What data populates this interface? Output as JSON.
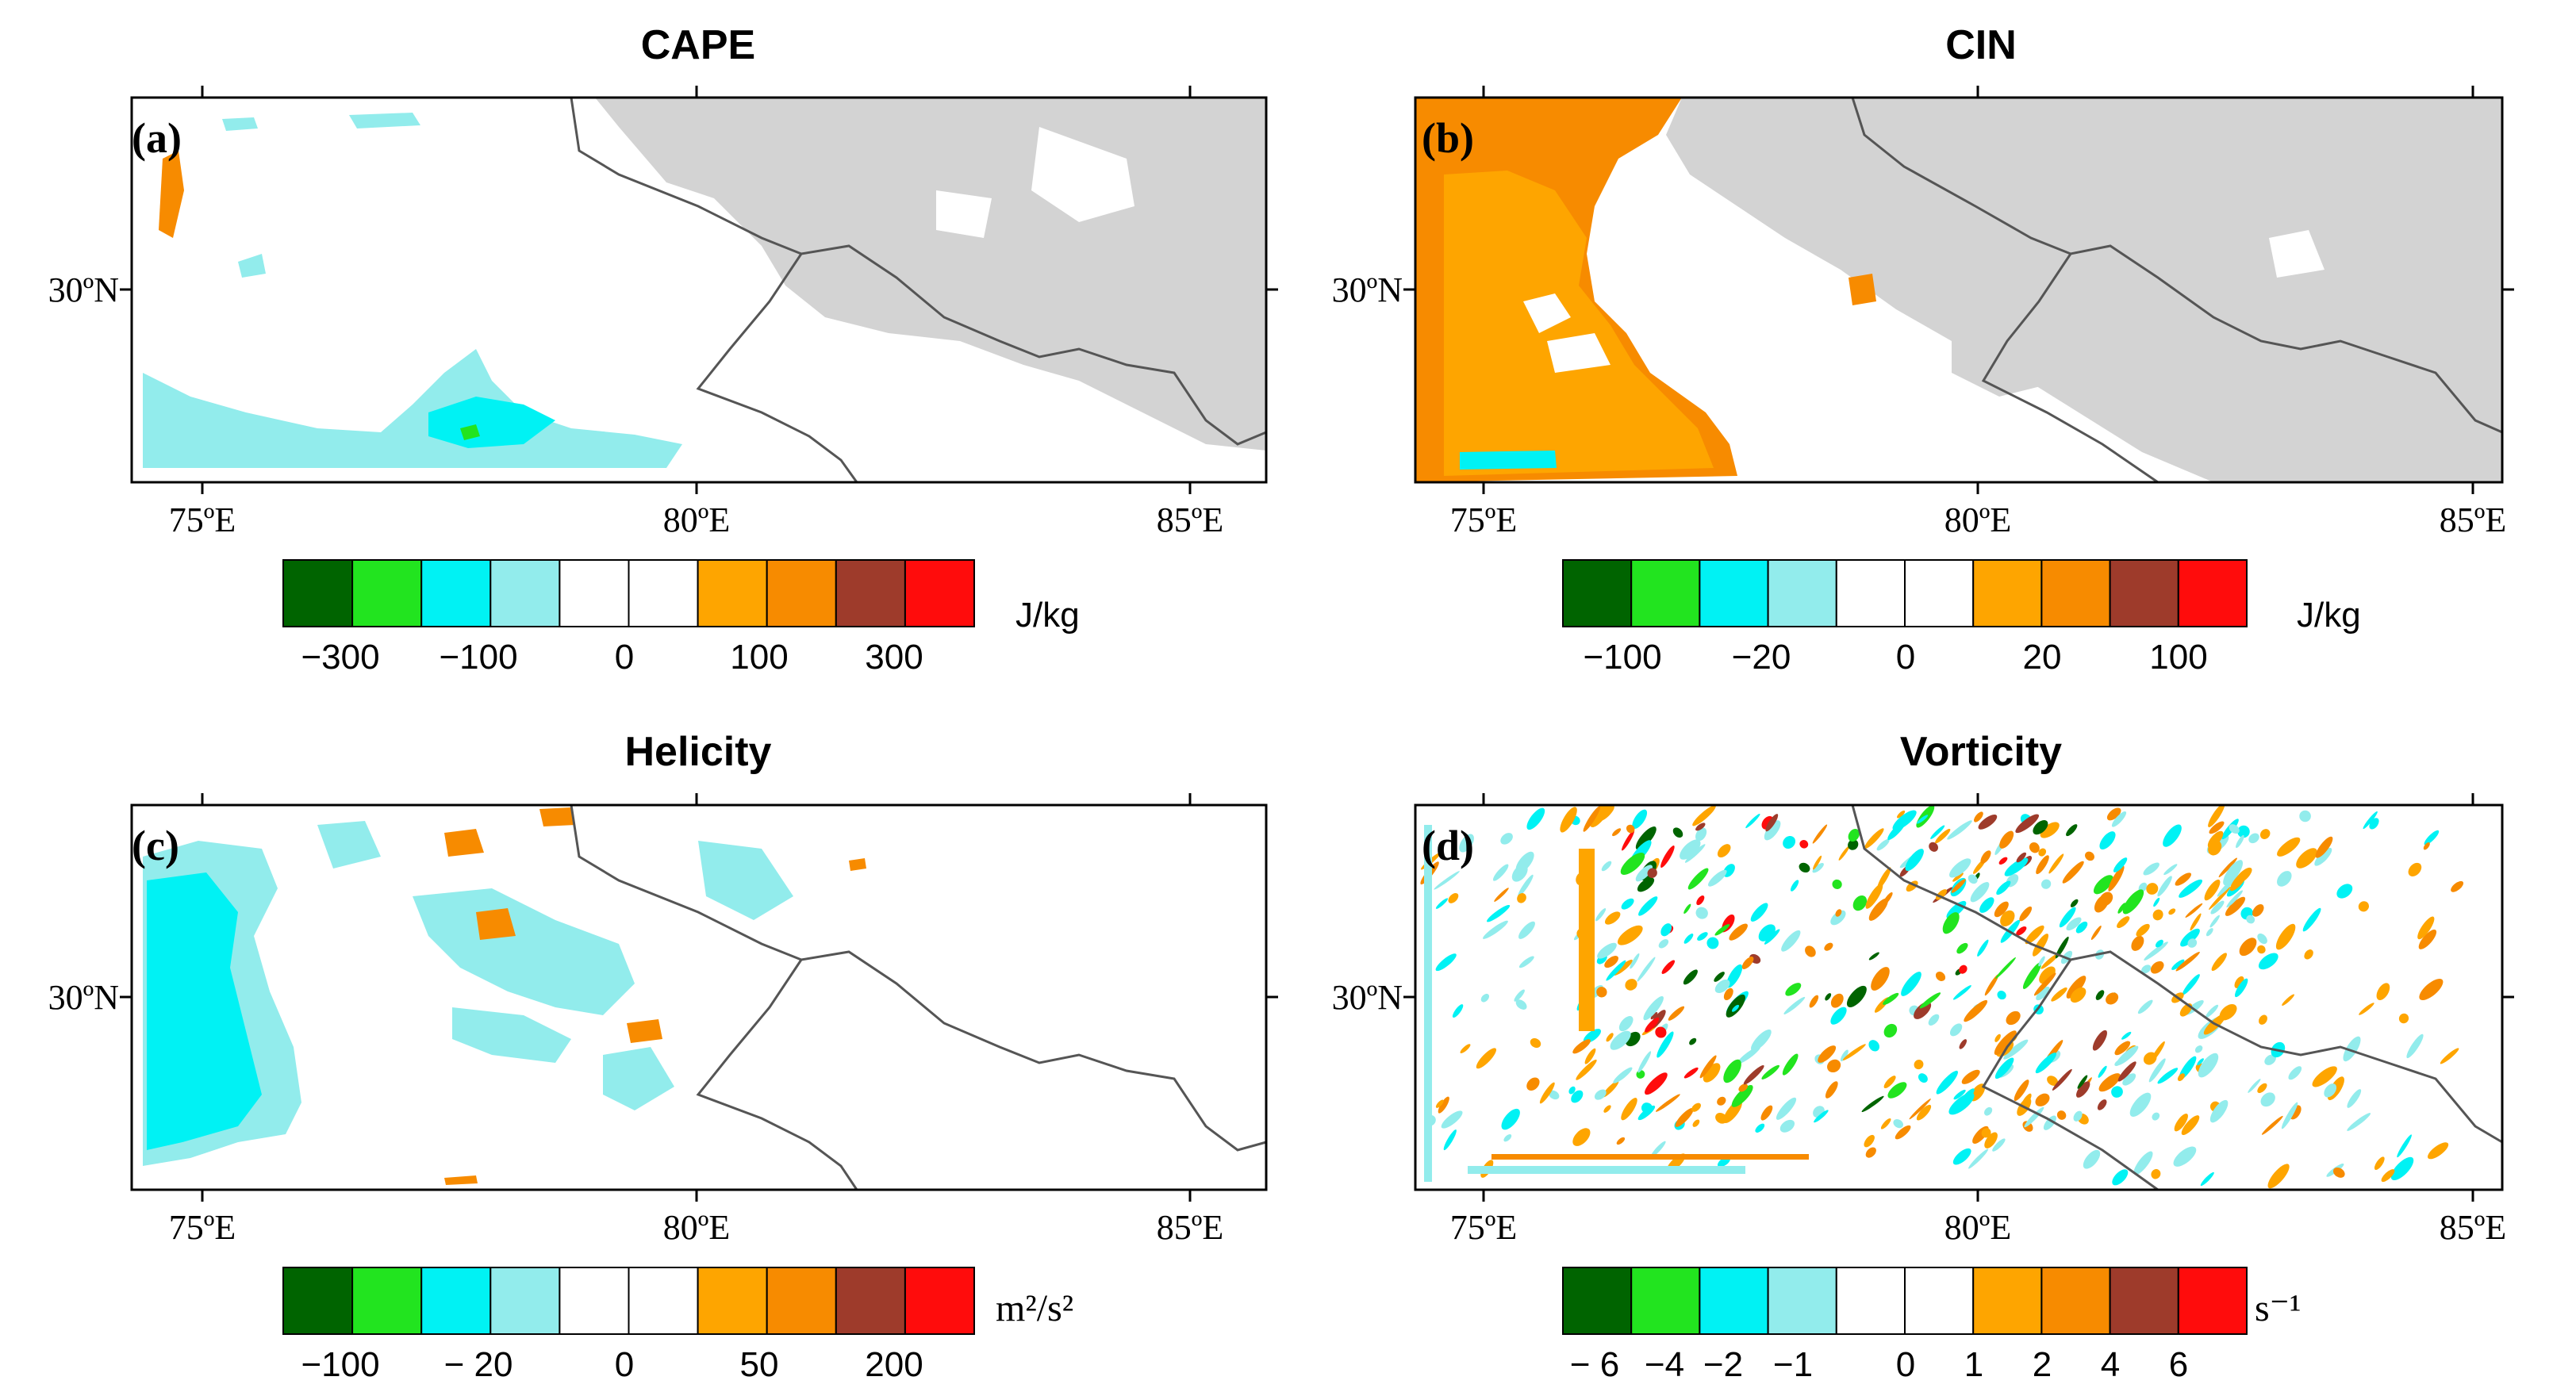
{
  "panels": [
    {
      "key": "cape",
      "title": "CAPE",
      "label": "(a)",
      "lat_label": "30ºN",
      "lon_labels": [
        "75ºE",
        "80ºE",
        "85ºE"
      ],
      "colorbar_ticks": [
        "−300",
        "−100",
        "0",
        "100",
        "300"
      ],
      "unit": "J/kg"
    },
    {
      "key": "cin",
      "title": "CIN",
      "label": "(b)",
      "lat_label": "30ºN",
      "lon_labels": [
        "75ºE",
        "80ºE",
        "85ºE"
      ],
      "colorbar_ticks": [
        "−100",
        "−20",
        "0",
        "20",
        "100"
      ],
      "unit": "J/kg"
    },
    {
      "key": "helicity",
      "title": "Helicity",
      "label": "(c)",
      "lat_label": "30ºN",
      "lon_labels": [
        "75ºE",
        "80ºE",
        "85ºE"
      ],
      "colorbar_ticks": [
        "−100",
        "− 20",
        "0",
        "50",
        "200"
      ],
      "unit": "m²/s²"
    },
    {
      "key": "vorticity",
      "title": "Vorticity",
      "label": "(d)",
      "lat_label": "30ºN",
      "lon_labels": [
        "75ºE",
        "80ºE",
        "85ºE"
      ],
      "colorbar_ticks": [
        "− 6",
        "−4",
        "−2",
        "−1",
        "0",
        "1",
        "2",
        "4",
        "6"
      ],
      "unit": "s⁻¹"
    }
  ],
  "colors": {
    "palette": [
      "#006400",
      "#22e41f",
      "#00f2f4",
      "#92ecec",
      "#ffffff",
      "#ffffff",
      "#fea500",
      "#f78b00",
      "#9e3b2b",
      "#ff0c0c"
    ],
    "missing": "#d3d3d3",
    "border_line": "#555555"
  }
}
